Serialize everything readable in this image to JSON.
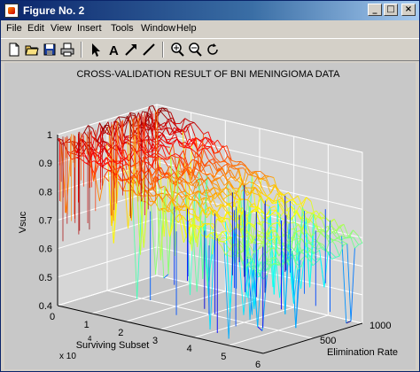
{
  "window": {
    "title": "Figure No. 2"
  },
  "menu": [
    "File",
    "Edit",
    "View",
    "Insert",
    "Tools",
    "Window",
    "Help"
  ],
  "toolbar": [
    "new-file-icon",
    "open-folder-icon",
    "save-icon",
    "print-icon",
    "select-arrow-icon",
    "insert-text-icon",
    "insert-arrow-icon",
    "insert-line-icon",
    "zoom-in-icon",
    "zoom-out-icon",
    "rotate-3d-icon"
  ],
  "figure": {
    "title": "CROSS-VALIDATION RESULT OF BNI MENINGIOMA DATA",
    "zlabel": "Vsuc",
    "xlabel": "Surviving Subset",
    "ylabel": "Elimination Rate",
    "x_multiplier": "x 10",
    "x_multiplier_exp": "4"
  },
  "chart_data": {
    "type": "surface",
    "title": "CROSS-VALIDATION RESULT OF BNI MENINGIOMA DATA",
    "xlabel": "Surviving Subset",
    "ylabel": "Elimination Rate",
    "zlabel": "Vsuc",
    "x_ticks": [
      "0",
      "1",
      "2",
      "3",
      "4",
      "5",
      "6"
    ],
    "y_ticks": [
      "500",
      "1000"
    ],
    "z_ticks": [
      "0.4",
      "0.5",
      "0.6",
      "0.7",
      "0.8",
      "0.9",
      "1"
    ],
    "xlim": [
      0,
      60000
    ],
    "ylim": [
      0,
      1000
    ],
    "zlim": [
      0.4,
      1.0
    ],
    "colormap": "jet",
    "grid": true,
    "mesh_profile_x": [
      0,
      10000,
      20000,
      30000,
      40000,
      50000,
      60000
    ],
    "mesh_profile_vsuc_low_rate": [
      0.98,
      0.92,
      0.87,
      0.82,
      0.78,
      0.72,
      0.68
    ],
    "mesh_profile_vsuc_high_rate": [
      0.99,
      0.95,
      0.9,
      0.84,
      0.79,
      0.74,
      0.68
    ]
  }
}
